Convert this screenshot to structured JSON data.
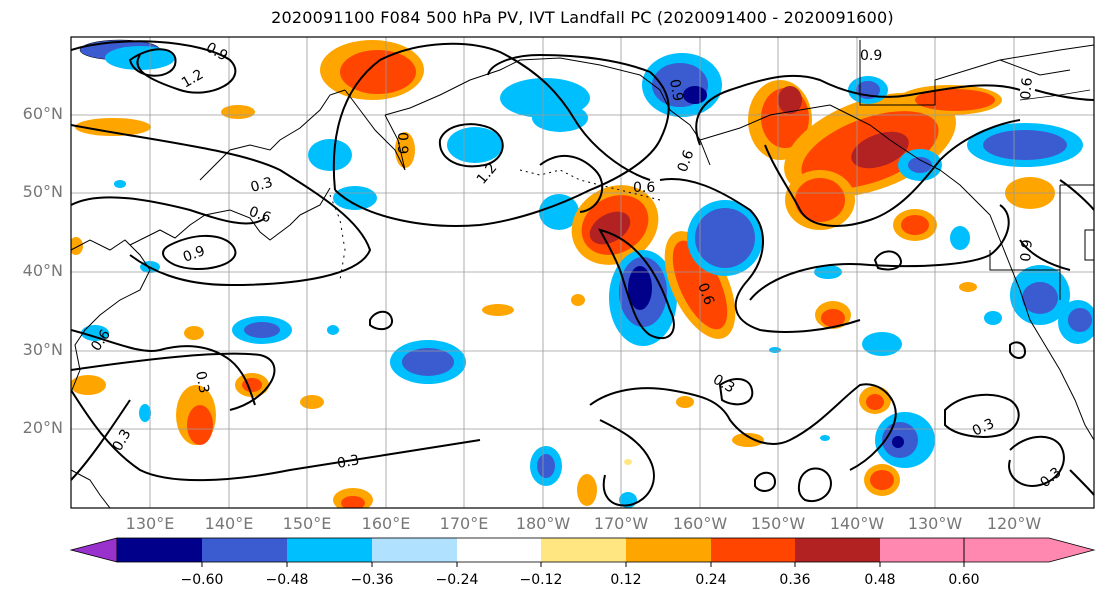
{
  "title": "2020091100 F084 500 hPa PV, IVT Landfall PC (2020091400 - 2020091600)",
  "lat_labels": [
    "60°N",
    "50°N",
    "40°N",
    "30°N",
    "20°N"
  ],
  "lon_labels": [
    "130°E",
    "140°E",
    "150°E",
    "160°E",
    "170°E",
    "180°W",
    "170°W",
    "160°W",
    "150°W",
    "140°W",
    "130°W",
    "120°W"
  ],
  "contour_labels": [
    "0.9",
    "1.2",
    "0.3",
    "0.6",
    "0.9",
    "0.9",
    "1.2",
    "0.9",
    "0.6",
    "0.6",
    "0.6",
    "0.6",
    "0.3",
    "0.3",
    "0.3",
    "0.3",
    "0.3",
    "0.3",
    "0.9",
    "0.6",
    "0.9"
  ],
  "colorbar": {
    "ticks": [
      "−0.60",
      "−0.48",
      "−0.36",
      "−0.24",
      "−0.12",
      "0.12",
      "0.24",
      "0.36",
      "0.48",
      "0.60"
    ],
    "colors": [
      "#9932cc",
      "#00008b",
      "#3b5bd1",
      "#00bfff",
      "#b0e2ff",
      "#ffffff",
      "#ffe680",
      "#ffa500",
      "#ff4500",
      "#b22222",
      "#ff88b0"
    ]
  }
}
